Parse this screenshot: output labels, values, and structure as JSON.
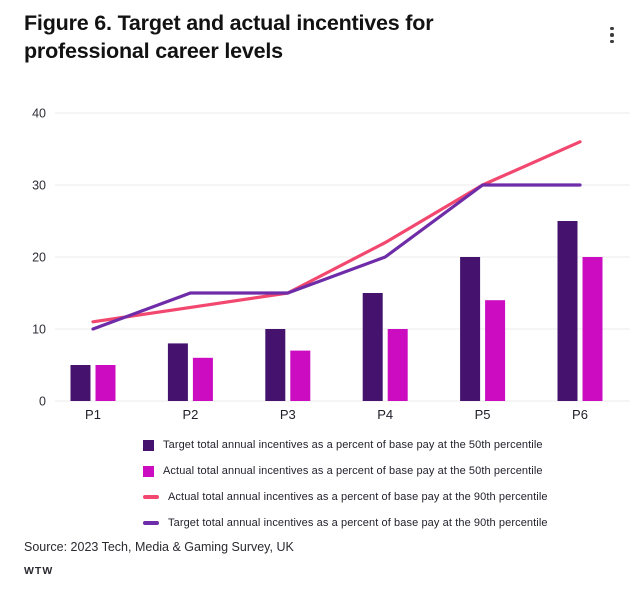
{
  "header": {
    "title": "Figure 6. Target and actual incentives for professional career levels",
    "menu_icon": "kebab-menu"
  },
  "chart_data": {
    "type": "bar",
    "subtype": "grouped bars with overlaid lines",
    "categories": [
      "P1",
      "P2",
      "P3",
      "P4",
      "P5",
      "P6"
    ],
    "series": [
      {
        "name": "Target total annual incentives as a percent of base pay at the 50th percentile",
        "kind": "bar",
        "color": "#45136E",
        "values": [
          5,
          8,
          10,
          15,
          20,
          25
        ]
      },
      {
        "name": "Actual total annual incentives as a percent of base pay at the 50th percentile",
        "kind": "bar",
        "color": "#CB0CC1",
        "values": [
          5,
          6,
          7,
          10,
          14,
          20
        ]
      },
      {
        "name": "Actual total annual incentives as a percent of base pay at the 90th percentile",
        "kind": "line",
        "color": "#F2486F",
        "values": [
          11,
          13,
          15,
          22,
          30,
          36
        ]
      },
      {
        "name": "Target total annual incentives as a percent of base pay at the 90th percentile",
        "kind": "line",
        "color": "#6E2CA8",
        "values": [
          10,
          15,
          15,
          20,
          30,
          30
        ]
      }
    ],
    "title": "Figure 6. Target and actual incentives for professional career levels",
    "xlabel": "",
    "ylabel": "",
    "ylim": [
      0,
      40
    ],
    "yticks": [
      0,
      10,
      20,
      30,
      40
    ],
    "grid": "horizontal",
    "legend_position": "bottom"
  },
  "footer": {
    "source": "Source: 2023 Tech, Media & Gaming Survey, UK",
    "brand": "WTW"
  }
}
